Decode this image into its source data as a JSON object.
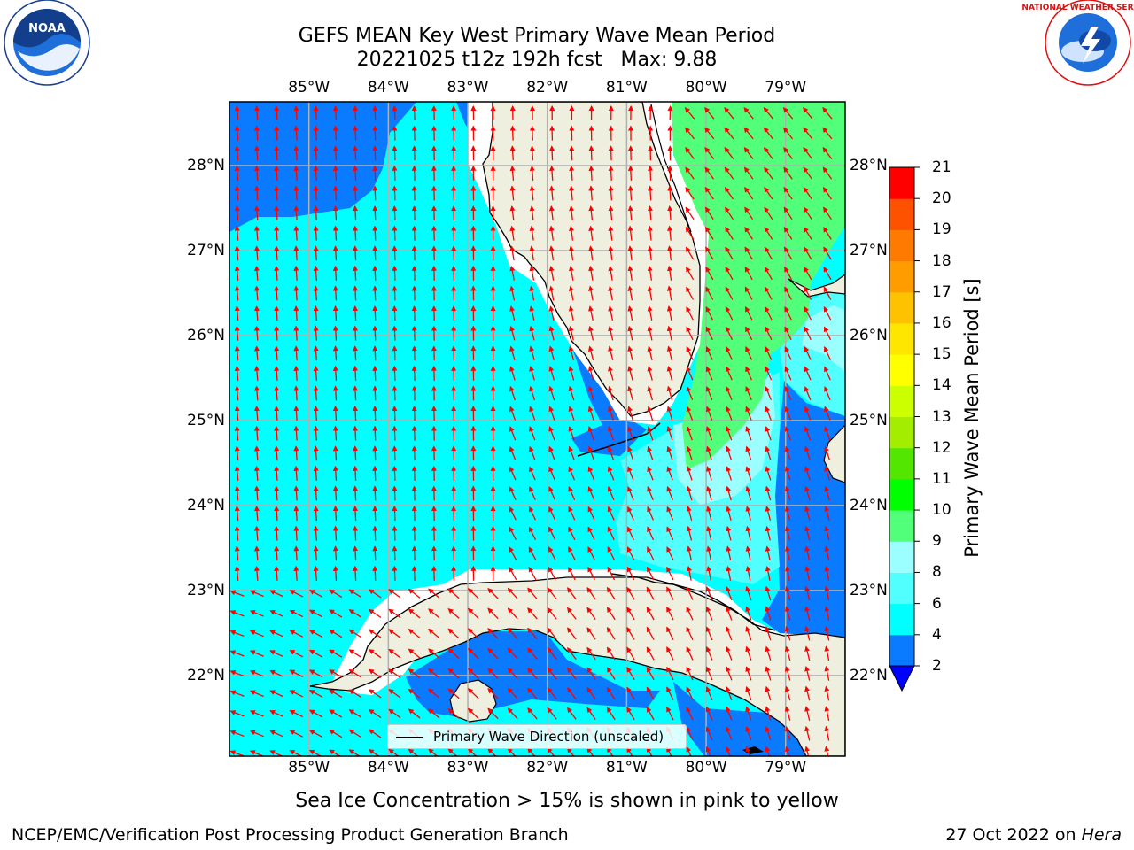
{
  "title": {
    "line1": "GEFS MEAN Key West Primary Wave Mean Period",
    "line2": "20221025 t12z 192h fcst   Max: 9.88"
  },
  "axes": {
    "lon_labels": [
      "85°W",
      "84°W",
      "83°W",
      "82°W",
      "81°W",
      "80°W",
      "79°W"
    ],
    "lat_labels": [
      "28°N",
      "27°N",
      "26°N",
      "25°N",
      "24°N",
      "23°N",
      "22°N"
    ],
    "lon_range": [
      -86.0,
      -78.25
    ],
    "lat_range": [
      21.05,
      28.75
    ],
    "grid": true
  },
  "legend": {
    "entry": "Primary Wave Direction (unscaled)",
    "placement": "bottom-center"
  },
  "colorbar": {
    "label": "Primary Wave Mean Period [s]",
    "ticks": [
      "21",
      "20",
      "19",
      "18",
      "17",
      "16",
      "15",
      "14",
      "13",
      "12",
      "11",
      "10",
      "9",
      "8",
      "6",
      "4",
      "2"
    ],
    "levels": [
      2,
      4,
      6,
      8,
      9,
      10,
      11,
      12,
      13,
      14,
      15,
      16,
      17,
      18,
      19,
      20,
      21
    ],
    "colors": [
      "#0a7aff",
      "#00ffff",
      "#52ffff",
      "#9cffff",
      "#52ff7a",
      "#00ff00",
      "#52e600",
      "#a3ed00",
      "#ccff00",
      "#ffff00",
      "#ffe600",
      "#ffc200",
      "#ff9c00",
      "#ff7a00",
      "#ff5200",
      "#ff0000"
    ],
    "under_color": "#0000ff"
  },
  "colors": {
    "land": "#efefdf",
    "arrow": "#ff0000",
    "grid": "#b0b0b0"
  },
  "note": "Sea Ice Concentration > 15% is shown in pink to yellow",
  "footer": {
    "left": "NCEP/EMC/Verification Post Processing Product Generation Branch",
    "right_prefix": "27 Oct 2022 on ",
    "right_host": "Hera"
  },
  "logos": {
    "noaa_text": "NOAA",
    "noaa_ring": "NATIONAL OCEANIC AND ATMOSPHERIC ADMINISTRATION · U.S. DEPARTMENT OF COMMERCE",
    "nws_ring": "NATIONAL WEATHER SERVICE"
  }
}
